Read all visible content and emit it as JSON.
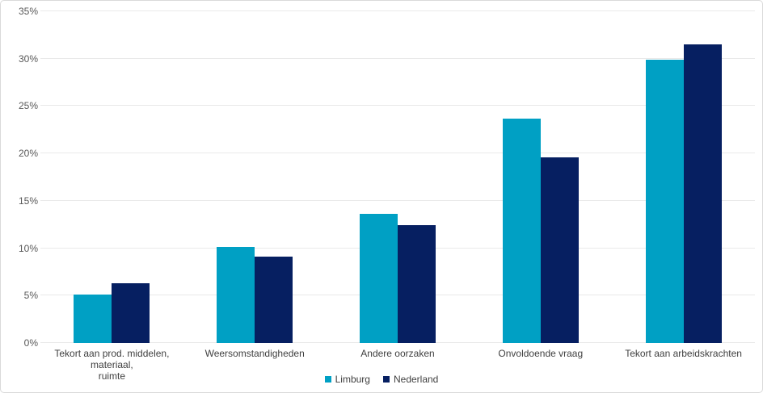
{
  "chart_data": {
    "type": "bar",
    "categories": [
      "Tekort aan prod. middelen, materiaal,\nruimte",
      "Weersomstandigheden",
      "Andere oorzaken",
      "Onvoldoende vraag",
      "Tekort aan arbeidskrachten"
    ],
    "series": [
      {
        "name": "Limburg",
        "color": "#00A0C4",
        "values": [
          5.1,
          10.1,
          13.6,
          23.7,
          29.9
        ]
      },
      {
        "name": "Nederland",
        "color": "#061F61",
        "values": [
          6.3,
          9.1,
          12.4,
          19.6,
          31.5
        ]
      }
    ],
    "title": "",
    "xlabel": "",
    "ylabel": "",
    "ylim": [
      0,
      35
    ],
    "y_ticks": [
      "0%",
      "5%",
      "10%",
      "15%",
      "20%",
      "25%",
      "30%",
      "35%"
    ],
    "grid": true,
    "legend_position": "bottom"
  },
  "colors": {
    "background": "#ffffff",
    "border": "#d9d9d9",
    "gridline": "#e9e9e9",
    "axis_text": "#595959",
    "label_text": "#404040"
  }
}
